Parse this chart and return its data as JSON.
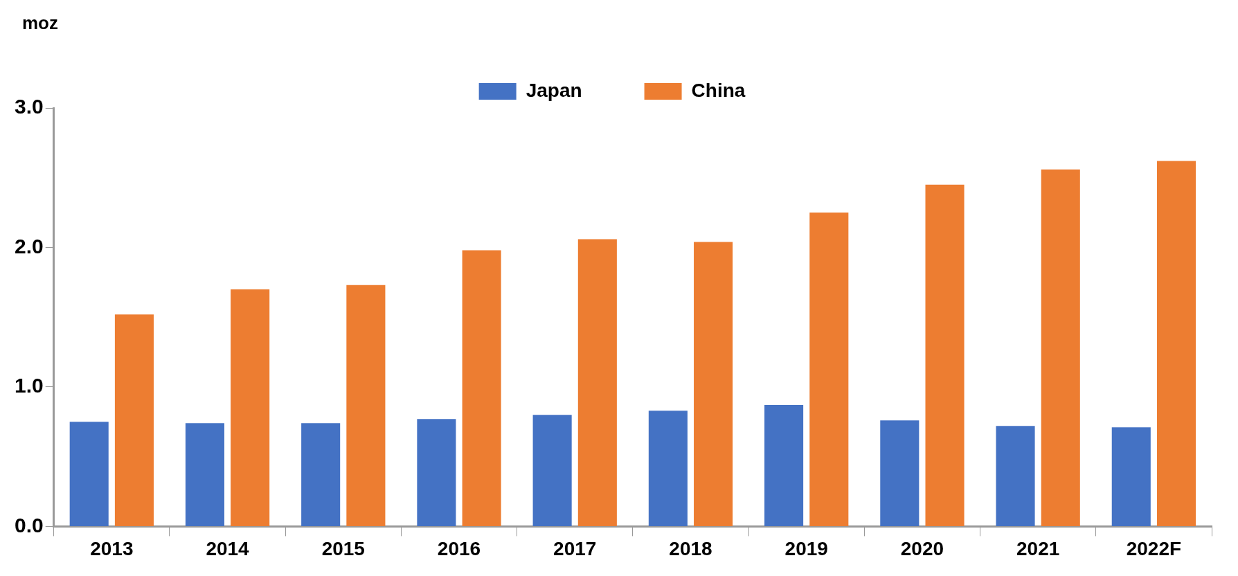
{
  "chart_data": {
    "type": "bar",
    "ylabel": "moz",
    "categories": [
      "2013",
      "2014",
      "2015",
      "2016",
      "2017",
      "2018",
      "2019",
      "2020",
      "2021",
      "2022F"
    ],
    "series": [
      {
        "name": "Japan",
        "color": "#4472c4",
        "values": [
          0.75,
          0.74,
          0.74,
          0.77,
          0.8,
          0.83,
          0.87,
          0.76,
          0.72,
          0.71
        ]
      },
      {
        "name": "China",
        "color": "#ed7d31",
        "values": [
          1.52,
          1.7,
          1.73,
          1.98,
          2.06,
          2.04,
          2.25,
          2.45,
          2.56,
          2.62
        ]
      }
    ],
    "ylim": [
      0,
      3
    ],
    "yticks": [
      {
        "value": 0,
        "label": "0.0"
      },
      {
        "value": 1,
        "label": "1.0"
      },
      {
        "value": 2,
        "label": "2.0"
      },
      {
        "value": 3,
        "label": "3.0"
      }
    ],
    "grid": false,
    "legend": "top"
  }
}
